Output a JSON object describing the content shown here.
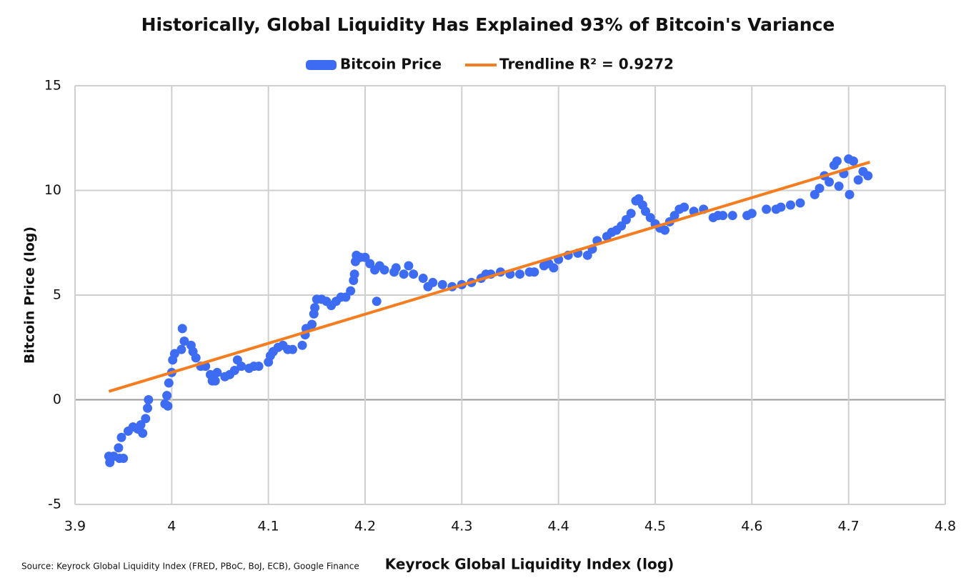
{
  "chart_data": {
    "type": "scatter",
    "title": "Historically, Global Liquidity Has Explained 93% of Bitcoin's Variance",
    "x_label": "Keyrock Global Liquidity Index (log)",
    "y_label": "Bitcoin Price (log)",
    "source": "Source: Keyrock Global Liquidity Index (FRED, PBoC, BoJ, ECB), Google Finance",
    "xlim": [
      3.9,
      4.8
    ],
    "xticks": [
      3.9,
      4,
      4.1,
      4.2,
      4.3,
      4.4,
      4.5,
      4.6,
      4.7,
      4.8
    ],
    "ylim": [
      -5,
      15
    ],
    "yticks": [
      -5,
      0,
      5,
      10,
      15
    ],
    "grid": true,
    "legend": "top",
    "series": [
      {
        "name": "Bitcoin Price",
        "color": "#3d6cf2",
        "x": [
          3.935,
          3.936,
          3.94,
          3.945,
          3.946,
          3.948,
          3.95,
          3.955,
          3.96,
          3.965,
          3.968,
          3.97,
          3.973,
          3.975,
          3.976,
          3.993,
          3.995,
          3.996,
          3.997,
          4.0,
          4.001,
          4.003,
          4.01,
          4.011,
          4.013,
          4.02,
          4.022,
          4.025,
          4.03,
          4.035,
          4.04,
          4.042,
          4.045,
          4.047,
          4.055,
          4.06,
          4.065,
          4.068,
          4.072,
          4.08,
          4.085,
          4.09,
          4.1,
          4.102,
          4.105,
          4.11,
          4.115,
          4.12,
          4.125,
          4.135,
          4.138,
          4.139,
          4.145,
          4.147,
          4.148,
          4.15,
          4.155,
          4.16,
          4.165,
          4.17,
          4.175,
          4.18,
          4.185,
          4.188,
          4.189,
          4.19,
          4.191,
          4.195,
          4.2,
          4.205,
          4.21,
          4.212,
          4.215,
          4.22,
          4.23,
          4.232,
          4.24,
          4.245,
          4.25,
          4.26,
          4.265,
          4.27,
          4.28,
          4.29,
          4.3,
          4.31,
          4.32,
          4.325,
          4.33,
          4.34,
          4.35,
          4.36,
          4.37,
          4.375,
          4.385,
          4.39,
          4.395,
          4.4,
          4.41,
          4.42,
          4.43,
          4.435,
          4.44,
          4.45,
          4.455,
          4.46,
          4.465,
          4.47,
          4.475,
          4.48,
          4.483,
          4.487,
          4.49,
          4.495,
          4.5,
          4.505,
          4.51,
          4.515,
          4.52,
          4.525,
          4.53,
          4.54,
          4.55,
          4.56,
          4.565,
          4.57,
          4.58,
          4.595,
          4.6,
          4.615,
          4.625,
          4.63,
          4.64,
          4.65,
          4.665,
          4.67,
          4.675,
          4.68,
          4.685,
          4.688,
          4.69,
          4.695,
          4.7,
          4.701,
          4.705,
          4.71,
          4.715,
          4.72
        ],
        "values": [
          -2.7,
          -3.0,
          -2.7,
          -2.3,
          -2.8,
          -1.8,
          -2.8,
          -1.5,
          -1.3,
          -1.4,
          -1.2,
          -1.6,
          -0.9,
          -0.4,
          0,
          -0.2,
          0.2,
          -0.3,
          0.8,
          1.3,
          1.9,
          2.2,
          2.4,
          3.4,
          2.8,
          2.6,
          2.3,
          2.0,
          1.6,
          1.6,
          1.2,
          0.9,
          0.9,
          1.3,
          1.1,
          1.2,
          1.4,
          1.9,
          1.6,
          1.5,
          1.6,
          1.6,
          1.8,
          2.1,
          2.3,
          2.5,
          2.6,
          2.4,
          2.4,
          2.6,
          3.1,
          3.4,
          3.6,
          4.1,
          4.4,
          4.8,
          4.8,
          4.7,
          4.5,
          4.7,
          4.9,
          4.9,
          5.2,
          5.7,
          6.0,
          6.6,
          6.9,
          6.8,
          6.8,
          6.5,
          6.2,
          4.7,
          6.4,
          6.2,
          6.1,
          6.3,
          6.0,
          6.4,
          6.0,
          5.8,
          5.4,
          5.6,
          5.5,
          5.4,
          5.5,
          5.6,
          5.8,
          6.0,
          6.0,
          6.1,
          6.0,
          6.0,
          6.1,
          6.1,
          6.4,
          6.5,
          6.3,
          6.7,
          6.9,
          7.0,
          6.9,
          7.2,
          7.6,
          7.8,
          8.0,
          8.1,
          8.3,
          8.6,
          8.9,
          9.5,
          9.6,
          9.3,
          9.0,
          8.7,
          8.4,
          8.2,
          8.1,
          8.5,
          8.8,
          9.1,
          9.2,
          9.0,
          9.1,
          8.7,
          8.8,
          8.8,
          8.8,
          8.8,
          8.9,
          9.1,
          9.1,
          9.2,
          9.3,
          9.4,
          9.8,
          10.1,
          10.7,
          10.4,
          11.2,
          11.4,
          10.2,
          10.8,
          11.5,
          9.8,
          11.4,
          10.5,
          10.9,
          10.7
        ]
      },
      {
        "name": "Trendline R² = 0.9272",
        "type": "line",
        "color": "#f57c1f",
        "x": [
          3.935,
          4.722
        ],
        "values": [
          0.4,
          11.35
        ]
      }
    ]
  }
}
